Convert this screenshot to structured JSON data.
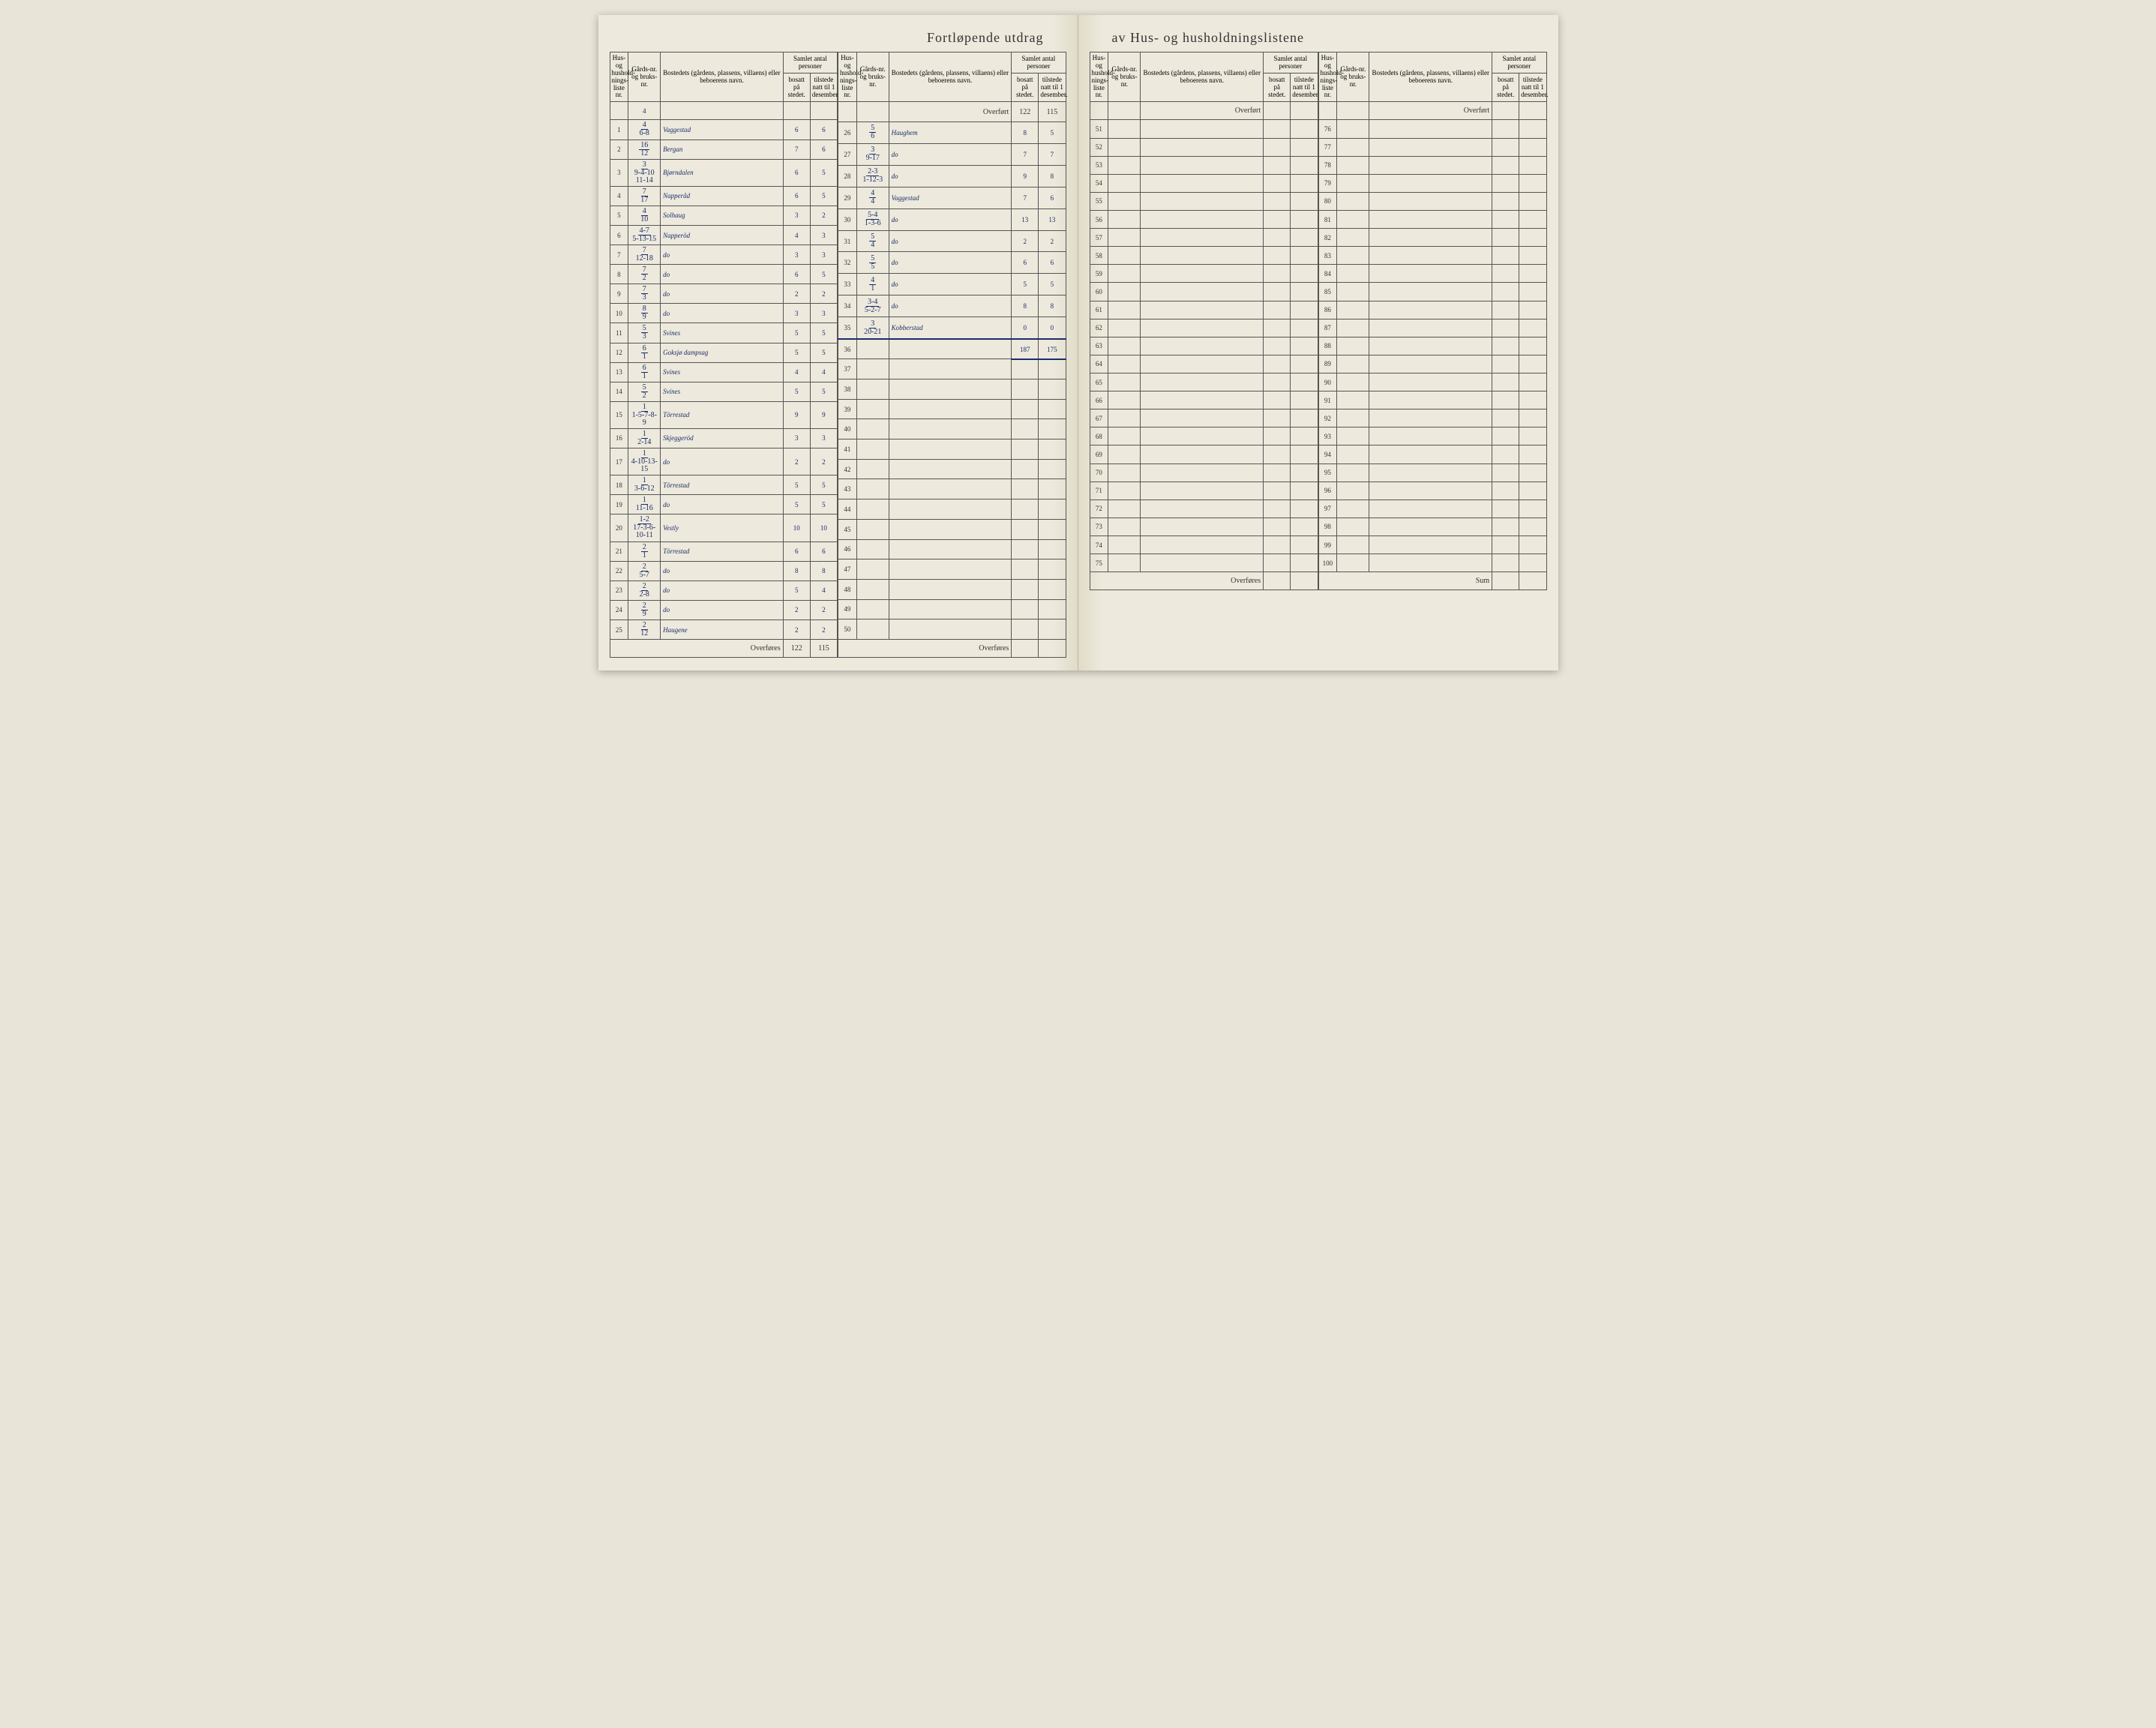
{
  "title_left": "Fortløpende utdrag",
  "title_right": "av Hus- og husholdningslistene",
  "headers": {
    "liste": "Hus- og hushold-nings-liste nr.",
    "gard": "Gårds-nr. og bruks-nr.",
    "bosted": "Bostedets (gårdens, plassens, villaens) eller beboerens navn.",
    "samlet": "Samlet antal personer",
    "bosatt": "bosatt på stedet.",
    "tilstede": "tilstede natt til 1 desember."
  },
  "overfort_label": "Overført",
  "overfores_label": "Overføres",
  "sum_label": "Sum",
  "section1": {
    "top_gard": "4",
    "rows": [
      {
        "n": "1",
        "g_top": "4",
        "g_bot": "6-8",
        "name": "Vaggestad",
        "b": "6",
        "t": "6"
      },
      {
        "n": "2",
        "g_top": "16",
        "g_bot": "12",
        "name": "Bergan",
        "b": "7",
        "t": "6"
      },
      {
        "n": "3",
        "g_top": "3",
        "g_bot": "9-4-10 11-14",
        "name": "Bjørndalen",
        "b": "6",
        "t": "5"
      },
      {
        "n": "4",
        "g_top": "7",
        "g_bot": "17",
        "name": "Napperåd",
        "b": "6",
        "t": "5"
      },
      {
        "n": "5",
        "g_top": "4",
        "g_bot": "10",
        "name": "Solhaug",
        "b": "3",
        "t": "2"
      },
      {
        "n": "6",
        "g_top": "4-7",
        "g_bot": "5-13-15",
        "name": "Napperöd",
        "b": "4",
        "t": "3"
      },
      {
        "n": "7",
        "g_top": "7",
        "g_bot": "12-18",
        "name": "do",
        "b": "3",
        "t": "3"
      },
      {
        "n": "8",
        "g_top": "7",
        "g_bot": "2",
        "name": "do",
        "b": "6",
        "t": "5"
      },
      {
        "n": "9",
        "g_top": "7",
        "g_bot": "3",
        "name": "do",
        "b": "2",
        "t": "2"
      },
      {
        "n": "10",
        "g_top": "8",
        "g_bot": "9",
        "name": "do",
        "b": "3",
        "t": "3"
      },
      {
        "n": "11",
        "g_top": "5",
        "g_bot": "3",
        "name": "Svines",
        "b": "5",
        "t": "5"
      },
      {
        "n": "12",
        "g_top": "6",
        "g_bot": "1",
        "name": "Goksjø dampsag",
        "b": "5",
        "t": "5"
      },
      {
        "n": "13",
        "g_top": "6",
        "g_bot": "1",
        "name": "Svines",
        "b": "4",
        "t": "4"
      },
      {
        "n": "14",
        "g_top": "5",
        "g_bot": "2",
        "name": "Svines",
        "b": "5",
        "t": "5"
      },
      {
        "n": "15",
        "g_top": "1",
        "g_bot": "1-5-7-8-9",
        "name": "Törrestad",
        "b": "9",
        "t": "9"
      },
      {
        "n": "16",
        "g_top": "1",
        "g_bot": "2-14",
        "name": "Skjeggeröd",
        "b": "3",
        "t": "3"
      },
      {
        "n": "17",
        "g_top": "1",
        "g_bot": "4-10-13-15",
        "name": "do",
        "b": "2",
        "t": "2"
      },
      {
        "n": "18",
        "g_top": "1",
        "g_bot": "3-6-12",
        "name": "Törrestad",
        "b": "5",
        "t": "5"
      },
      {
        "n": "19",
        "g_top": "1",
        "g_bot": "11-16",
        "name": "do",
        "b": "5",
        "t": "5"
      },
      {
        "n": "20",
        "g_top": "1-2",
        "g_bot": "17-3-6-10-11",
        "name": "Vestly",
        "b": "10",
        "t": "10"
      },
      {
        "n": "21",
        "g_top": "2",
        "g_bot": "1",
        "name": "Törrestad",
        "b": "6",
        "t": "6"
      },
      {
        "n": "22",
        "g_top": "2",
        "g_bot": "5-7",
        "name": "do",
        "b": "8",
        "t": "8"
      },
      {
        "n": "23",
        "g_top": "2",
        "g_bot": "2-8",
        "name": "do",
        "b": "5",
        "t": "4"
      },
      {
        "n": "24",
        "g_top": "2",
        "g_bot": "9",
        "name": "do",
        "b": "2",
        "t": "2"
      },
      {
        "n": "25",
        "g_top": "2",
        "g_bot": "12",
        "name": "Haugene",
        "b": "2",
        "t": "2"
      }
    ],
    "overfores_b": "122",
    "overfores_t": "115"
  },
  "section2": {
    "overfort_b": "122",
    "overfort_t": "115",
    "rows": [
      {
        "n": "26",
        "g_top": "5",
        "g_bot": "6",
        "name": "Haughem",
        "b": "8",
        "t": "5"
      },
      {
        "n": "27",
        "g_top": "3",
        "g_bot": "9-17",
        "name": "do",
        "b": "7",
        "t": "7"
      },
      {
        "n": "28",
        "g_top": "2-3",
        "g_bot": "1-12-3",
        "name": "do",
        "b": "9",
        "t": "8"
      },
      {
        "n": "29",
        "g_top": "4",
        "g_bot": "4",
        "name": "Vaggestad",
        "b": "7",
        "t": "6"
      },
      {
        "n": "30",
        "g_top": "5-4",
        "g_bot": "1-3-6",
        "name": "do",
        "b": "13",
        "t": "13"
      },
      {
        "n": "31",
        "g_top": "5",
        "g_bot": "4",
        "name": "do",
        "b": "2",
        "t": "2"
      },
      {
        "n": "32",
        "g_top": "5",
        "g_bot": "5",
        "name": "do",
        "b": "6",
        "t": "6"
      },
      {
        "n": "33",
        "g_top": "4",
        "g_bot": "1",
        "name": "do",
        "b": "5",
        "t": "5"
      },
      {
        "n": "34",
        "g_top": "3-4",
        "g_bot": "5-2-7",
        "name": "do",
        "b": "8",
        "t": "8"
      },
      {
        "n": "35",
        "g_top": "3",
        "g_bot": "20-21",
        "name": "Kobberstad",
        "b": "0",
        "t": "0"
      }
    ],
    "sum_b": "187",
    "sum_t": "175",
    "empty_start": 36,
    "empty_end": 50
  },
  "section3": {
    "empty_start": 51,
    "empty_end": 75
  },
  "section4": {
    "empty_start": 76,
    "empty_end": 100
  }
}
